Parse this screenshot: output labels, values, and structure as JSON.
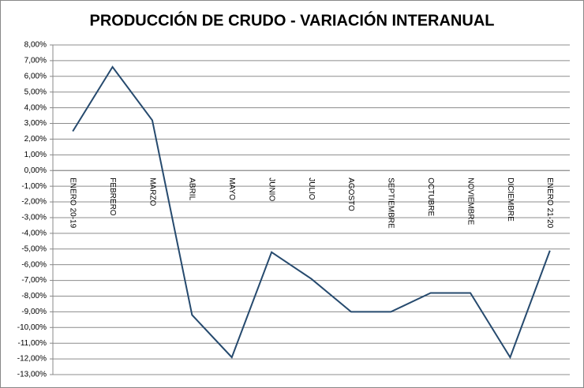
{
  "chart_data": {
    "type": "line",
    "title": "PRODUCCIÓN DE CRUDO - VARIACIÓN INTERANUAL",
    "categories": [
      "ENERO 20-19",
      "FEBRERO",
      "MARZO",
      "ABRIL",
      "MAYO",
      "JUNIO",
      "JULIO",
      "AGOSTO",
      "SEPTIEMBRE",
      "OCTUBRE",
      "NOVIEMBRE",
      "DICIEMBRE",
      "ENERO 21-20"
    ],
    "values": [
      2.5,
      6.6,
      3.2,
      -9.2,
      -11.9,
      -5.2,
      -6.9,
      -9.0,
      -9.0,
      -7.8,
      -7.8,
      -11.9,
      -5.1
    ],
    "color": "#264a6e",
    "ylim": [
      -13,
      8
    ],
    "yticks": [
      {
        "value": 8,
        "label": "8,00%"
      },
      {
        "value": 7,
        "label": "7,00%"
      },
      {
        "value": 6,
        "label": "6,00%"
      },
      {
        "value": 5,
        "label": "5,00%"
      },
      {
        "value": 4,
        "label": "4,00%"
      },
      {
        "value": 3,
        "label": "3,00%"
      },
      {
        "value": 2,
        "label": "2,00%"
      },
      {
        "value": 1,
        "label": "1,00%"
      },
      {
        "value": 0,
        "label": "0,00%"
      },
      {
        "value": -1,
        "label": "-1,00%"
      },
      {
        "value": -2,
        "label": "-2,00%"
      },
      {
        "value": -3,
        "label": "-3,00%"
      },
      {
        "value": -4,
        "label": "-4,00%"
      },
      {
        "value": -5,
        "label": "-5,00%"
      },
      {
        "value": -6,
        "label": "-6,00%"
      },
      {
        "value": -7,
        "label": "-7,00%"
      },
      {
        "value": -8,
        "label": "-8,00%"
      },
      {
        "value": -9,
        "label": "-9,00%"
      },
      {
        "value": -10,
        "label": "-10,00%"
      },
      {
        "value": -11,
        "label": "-11,00%"
      },
      {
        "value": -12,
        "label": "-12,00%"
      },
      {
        "value": -13,
        "label": "-13,00%"
      }
    ],
    "grid": true
  }
}
